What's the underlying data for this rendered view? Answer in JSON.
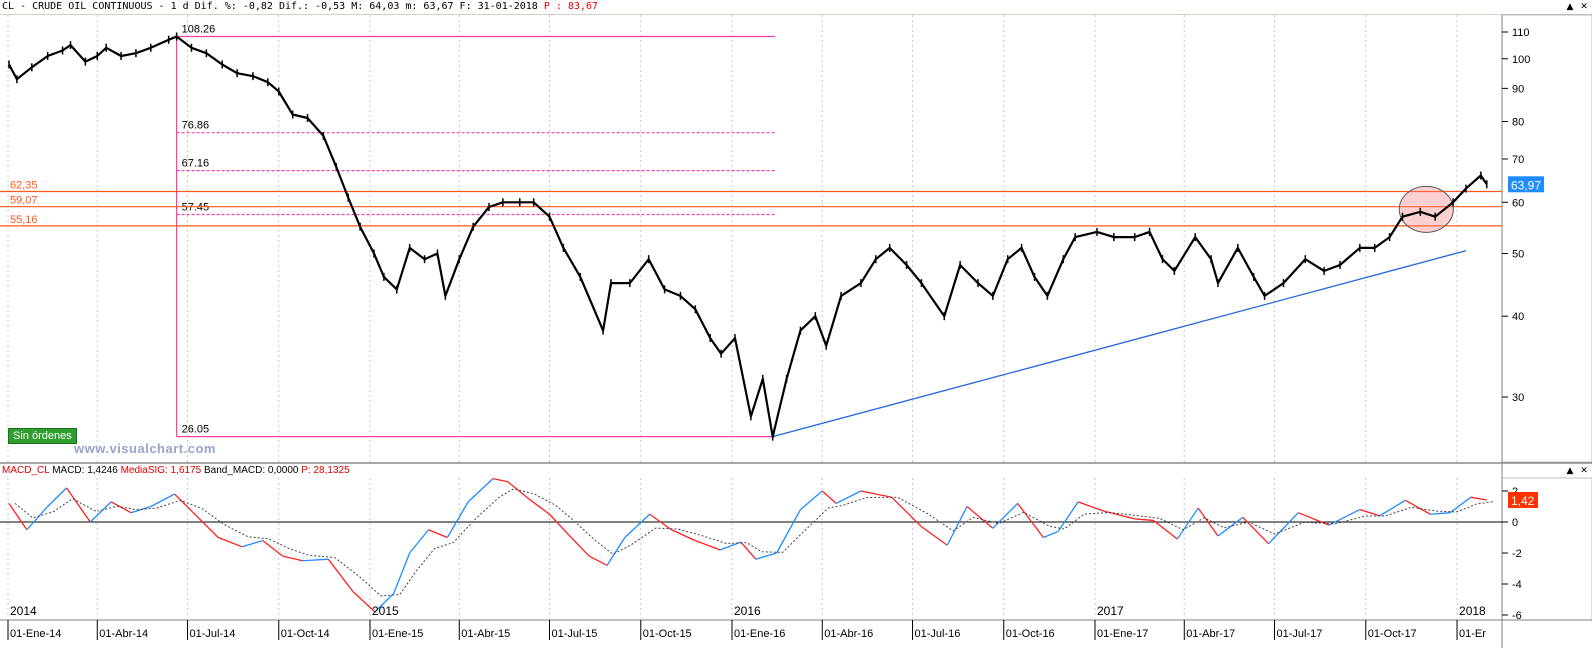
{
  "header": {
    "text_main": "CL - CRUDE OIL CONTINUOUS -   1 d Dif. %: -0,82 Dif.: -0,53 M: 64,03 m: 63,67 F: 31-01-2018 ",
    "text_p": "P : 83,67"
  },
  "macd_header": {
    "label": "MACD_CL",
    "macd": "MACD: 1,4246",
    "signal": "MediaSIG: 1,6175",
    "band": "Band_MACD: 0,0000",
    "p": "P: 28,1325"
  },
  "badge": {
    "label": "Sin órdenes"
  },
  "watermark": "www.visualchart.com",
  "colors": {
    "pink": "#ff3ea5",
    "orange": "#ff5a1a",
    "blue_trend": "#2266dd",
    "price": "#000000",
    "macd_blue": "#1e8cff",
    "macd_red": "#ff2020",
    "last_price_badge": "#1e8cff",
    "last_macd_badge": "#ff3300"
  },
  "chart_data": {
    "type": "line",
    "price_axis": {
      "ticks": [
        30,
        40,
        50,
        60,
        70,
        80,
        90,
        100,
        110
      ],
      "range": [
        24,
        115
      ],
      "scale": "log",
      "last_value_label": "63,97"
    },
    "macd_axis": {
      "ticks": [
        -6,
        -4,
        -2,
        0,
        2
      ],
      "tick_labels": [
        "-6",
        "-4",
        "-2",
        "0",
        "2"
      ],
      "range": [
        -6.4,
        3.9
      ],
      "last_value_label": "1,42"
    },
    "time_axis": {
      "date_labels": [
        "01-Ene-14",
        "01-Abr-14",
        "01-Jul-14",
        "01-Oct-14",
        "01-Ene-15",
        "01-Abr-15",
        "01-Jul-15",
        "01-Oct-15",
        "01-Ene-16",
        "01-Abr-16",
        "01-Jul-16",
        "01-Oct-16",
        "01-Ene-17",
        "01-Abr-17",
        "01-Jul-17",
        "01-Oct-17",
        "01-Er"
      ],
      "year_labels": [
        "2014",
        "2015",
        "2016",
        "2017",
        "2018"
      ]
    },
    "fibonacci": {
      "high_label": "108.26",
      "low_label": "26.05",
      "levels": [
        {
          "label": "108.26",
          "value": 108.26
        },
        {
          "label": "76.86",
          "value": 76.86
        },
        {
          "label": "67.16",
          "value": 67.16
        },
        {
          "label": "57.45",
          "value": 57.45
        },
        {
          "label": "26.05",
          "value": 26.05
        }
      ]
    },
    "horizontal_levels": [
      {
        "label": "62,35",
        "value": 62.35
      },
      {
        "label": "59,07",
        "value": 59.07
      },
      {
        "label": "55,16",
        "value": 55.16
      }
    ],
    "trend_line": {
      "from": {
        "date": "2016-02-11",
        "value": 26.05
      },
      "to": {
        "date": "2018-01-10",
        "value": 50.5
      }
    },
    "highlight_ellipse": {
      "date": "2017-12-01",
      "value": 58.5
    },
    "price_series": [
      {
        "date": "2014-01-02",
        "value": 98
      },
      {
        "date": "2014-01-10",
        "value": 93
      },
      {
        "date": "2014-01-25",
        "value": 97
      },
      {
        "date": "2014-02-10",
        "value": 101
      },
      {
        "date": "2014-02-25",
        "value": 103
      },
      {
        "date": "2014-03-05",
        "value": 105
      },
      {
        "date": "2014-03-20",
        "value": 99
      },
      {
        "date": "2014-04-01",
        "value": 101
      },
      {
        "date": "2014-04-10",
        "value": 104
      },
      {
        "date": "2014-04-25",
        "value": 101
      },
      {
        "date": "2014-05-10",
        "value": 102
      },
      {
        "date": "2014-05-25",
        "value": 104
      },
      {
        "date": "2014-06-12",
        "value": 107
      },
      {
        "date": "2014-06-20",
        "value": 108.26
      },
      {
        "date": "2014-07-05",
        "value": 104
      },
      {
        "date": "2014-07-20",
        "value": 102
      },
      {
        "date": "2014-08-05",
        "value": 98
      },
      {
        "date": "2014-08-20",
        "value": 95
      },
      {
        "date": "2014-09-05",
        "value": 94
      },
      {
        "date": "2014-09-20",
        "value": 92
      },
      {
        "date": "2014-10-01",
        "value": 89
      },
      {
        "date": "2014-10-15",
        "value": 82
      },
      {
        "date": "2014-10-30",
        "value": 81
      },
      {
        "date": "2014-11-15",
        "value": 76
      },
      {
        "date": "2014-11-28",
        "value": 68
      },
      {
        "date": "2014-12-10",
        "value": 61
      },
      {
        "date": "2014-12-22",
        "value": 55
      },
      {
        "date": "2015-01-05",
        "value": 50
      },
      {
        "date": "2015-01-15",
        "value": 46
      },
      {
        "date": "2015-01-28",
        "value": 44
      },
      {
        "date": "2015-02-10",
        "value": 51
      },
      {
        "date": "2015-02-25",
        "value": 49
      },
      {
        "date": "2015-03-10",
        "value": 50
      },
      {
        "date": "2015-03-18",
        "value": 43
      },
      {
        "date": "2015-04-01",
        "value": 49
      },
      {
        "date": "2015-04-15",
        "value": 55
      },
      {
        "date": "2015-05-01",
        "value": 59
      },
      {
        "date": "2015-05-15",
        "value": 60
      },
      {
        "date": "2015-06-01",
        "value": 60
      },
      {
        "date": "2015-06-15",
        "value": 60
      },
      {
        "date": "2015-07-01",
        "value": 57
      },
      {
        "date": "2015-07-15",
        "value": 51
      },
      {
        "date": "2015-08-01",
        "value": 46
      },
      {
        "date": "2015-08-24",
        "value": 38
      },
      {
        "date": "2015-09-01",
        "value": 45
      },
      {
        "date": "2015-09-20",
        "value": 45
      },
      {
        "date": "2015-10-09",
        "value": 49
      },
      {
        "date": "2015-10-25",
        "value": 44
      },
      {
        "date": "2015-11-10",
        "value": 43
      },
      {
        "date": "2015-11-25",
        "value": 41
      },
      {
        "date": "2015-12-10",
        "value": 37
      },
      {
        "date": "2015-12-21",
        "value": 35
      },
      {
        "date": "2016-01-04",
        "value": 37
      },
      {
        "date": "2016-01-20",
        "value": 28
      },
      {
        "date": "2016-02-01",
        "value": 32
      },
      {
        "date": "2016-02-11",
        "value": 26.05
      },
      {
        "date": "2016-02-25",
        "value": 32
      },
      {
        "date": "2016-03-10",
        "value": 38
      },
      {
        "date": "2016-03-25",
        "value": 40
      },
      {
        "date": "2016-04-05",
        "value": 36
      },
      {
        "date": "2016-04-20",
        "value": 43
      },
      {
        "date": "2016-05-10",
        "value": 45
      },
      {
        "date": "2016-05-25",
        "value": 49
      },
      {
        "date": "2016-06-08",
        "value": 51
      },
      {
        "date": "2016-06-25",
        "value": 48
      },
      {
        "date": "2016-07-10",
        "value": 45
      },
      {
        "date": "2016-08-02",
        "value": 40
      },
      {
        "date": "2016-08-18",
        "value": 48
      },
      {
        "date": "2016-09-05",
        "value": 45
      },
      {
        "date": "2016-09-20",
        "value": 43
      },
      {
        "date": "2016-10-05",
        "value": 49
      },
      {
        "date": "2016-10-19",
        "value": 51
      },
      {
        "date": "2016-11-01",
        "value": 46
      },
      {
        "date": "2016-11-14",
        "value": 43
      },
      {
        "date": "2016-11-30",
        "value": 49
      },
      {
        "date": "2016-12-12",
        "value": 53
      },
      {
        "date": "2017-01-03",
        "value": 54
      },
      {
        "date": "2017-01-20",
        "value": 53
      },
      {
        "date": "2017-02-10",
        "value": 53
      },
      {
        "date": "2017-02-25",
        "value": 54
      },
      {
        "date": "2017-03-10",
        "value": 49
      },
      {
        "date": "2017-03-22",
        "value": 47
      },
      {
        "date": "2017-04-12",
        "value": 53
      },
      {
        "date": "2017-04-28",
        "value": 49
      },
      {
        "date": "2017-05-05",
        "value": 45
      },
      {
        "date": "2017-05-25",
        "value": 51
      },
      {
        "date": "2017-06-10",
        "value": 46
      },
      {
        "date": "2017-06-21",
        "value": 43
      },
      {
        "date": "2017-07-10",
        "value": 45
      },
      {
        "date": "2017-08-01",
        "value": 49
      },
      {
        "date": "2017-08-20",
        "value": 47
      },
      {
        "date": "2017-09-05",
        "value": 48
      },
      {
        "date": "2017-09-25",
        "value": 51
      },
      {
        "date": "2017-10-10",
        "value": 51
      },
      {
        "date": "2017-10-25",
        "value": 53
      },
      {
        "date": "2017-11-07",
        "value": 57
      },
      {
        "date": "2017-11-25",
        "value": 58
      },
      {
        "date": "2017-12-10",
        "value": 57
      },
      {
        "date": "2017-12-28",
        "value": 60
      },
      {
        "date": "2018-01-10",
        "value": 63
      },
      {
        "date": "2018-01-25",
        "value": 66
      },
      {
        "date": "2018-01-31",
        "value": 63.97
      }
    ],
    "macd_series": [
      {
        "date": "2014-01-02",
        "value": 1.2
      },
      {
        "date": "2014-01-20",
        "value": -0.5
      },
      {
        "date": "2014-02-10",
        "value": 1.0
      },
      {
        "date": "2014-03-01",
        "value": 2.2
      },
      {
        "date": "2014-03-25",
        "value": 0.0
      },
      {
        "date": "2014-04-15",
        "value": 1.3
      },
      {
        "date": "2014-05-05",
        "value": 0.6
      },
      {
        "date": "2014-05-25",
        "value": 1.0
      },
      {
        "date": "2014-06-18",
        "value": 1.8
      },
      {
        "date": "2014-07-10",
        "value": 0.4
      },
      {
        "date": "2014-08-01",
        "value": -1.0
      },
      {
        "date": "2014-08-25",
        "value": -1.6
      },
      {
        "date": "2014-09-15",
        "value": -1.2
      },
      {
        "date": "2014-10-05",
        "value": -2.2
      },
      {
        "date": "2014-10-25",
        "value": -2.5
      },
      {
        "date": "2014-11-20",
        "value": -2.4
      },
      {
        "date": "2014-12-15",
        "value": -4.5
      },
      {
        "date": "2015-01-06",
        "value": -5.8
      },
      {
        "date": "2015-01-25",
        "value": -4.6
      },
      {
        "date": "2015-02-10",
        "value": -2.0
      },
      {
        "date": "2015-03-01",
        "value": -0.5
      },
      {
        "date": "2015-03-20",
        "value": -1.0
      },
      {
        "date": "2015-04-10",
        "value": 1.3
      },
      {
        "date": "2015-05-05",
        "value": 2.8
      },
      {
        "date": "2015-05-20",
        "value": 2.6
      },
      {
        "date": "2015-06-10",
        "value": 1.5
      },
      {
        "date": "2015-07-01",
        "value": 0.5
      },
      {
        "date": "2015-07-20",
        "value": -0.8
      },
      {
        "date": "2015-08-10",
        "value": -2.2
      },
      {
        "date": "2015-08-28",
        "value": -2.8
      },
      {
        "date": "2015-09-15",
        "value": -1.0
      },
      {
        "date": "2015-10-10",
        "value": 0.5
      },
      {
        "date": "2015-11-01",
        "value": -0.5
      },
      {
        "date": "2015-11-25",
        "value": -1.2
      },
      {
        "date": "2015-12-20",
        "value": -1.8
      },
      {
        "date": "2016-01-10",
        "value": -1.3
      },
      {
        "date": "2016-01-25",
        "value": -2.4
      },
      {
        "date": "2016-02-15",
        "value": -2.0
      },
      {
        "date": "2016-03-10",
        "value": 0.8
      },
      {
        "date": "2016-04-01",
        "value": 2.0
      },
      {
        "date": "2016-04-15",
        "value": 1.2
      },
      {
        "date": "2016-05-10",
        "value": 2.0
      },
      {
        "date": "2016-06-10",
        "value": 1.6
      },
      {
        "date": "2016-07-10",
        "value": -0.3
      },
      {
        "date": "2016-08-05",
        "value": -1.5
      },
      {
        "date": "2016-08-25",
        "value": 1.0
      },
      {
        "date": "2016-09-20",
        "value": -0.4
      },
      {
        "date": "2016-10-15",
        "value": 1.2
      },
      {
        "date": "2016-11-10",
        "value": -1.0
      },
      {
        "date": "2016-11-25",
        "value": -0.6
      },
      {
        "date": "2016-12-15",
        "value": 1.3
      },
      {
        "date": "2017-01-10",
        "value": 0.7
      },
      {
        "date": "2017-02-10",
        "value": 0.2
      },
      {
        "date": "2017-03-01",
        "value": 0.1
      },
      {
        "date": "2017-03-25",
        "value": -1.1
      },
      {
        "date": "2017-04-15",
        "value": 0.9
      },
      {
        "date": "2017-05-05",
        "value": -0.9
      },
      {
        "date": "2017-05-30",
        "value": 0.3
      },
      {
        "date": "2017-06-25",
        "value": -1.4
      },
      {
        "date": "2017-07-25",
        "value": 0.6
      },
      {
        "date": "2017-08-25",
        "value": -0.2
      },
      {
        "date": "2017-09-25",
        "value": 0.8
      },
      {
        "date": "2017-10-15",
        "value": 0.4
      },
      {
        "date": "2017-11-10",
        "value": 1.4
      },
      {
        "date": "2017-12-05",
        "value": 0.5
      },
      {
        "date": "2017-12-25",
        "value": 0.6
      },
      {
        "date": "2018-01-15",
        "value": 1.6
      },
      {
        "date": "2018-01-31",
        "value": 1.42
      }
    ]
  }
}
